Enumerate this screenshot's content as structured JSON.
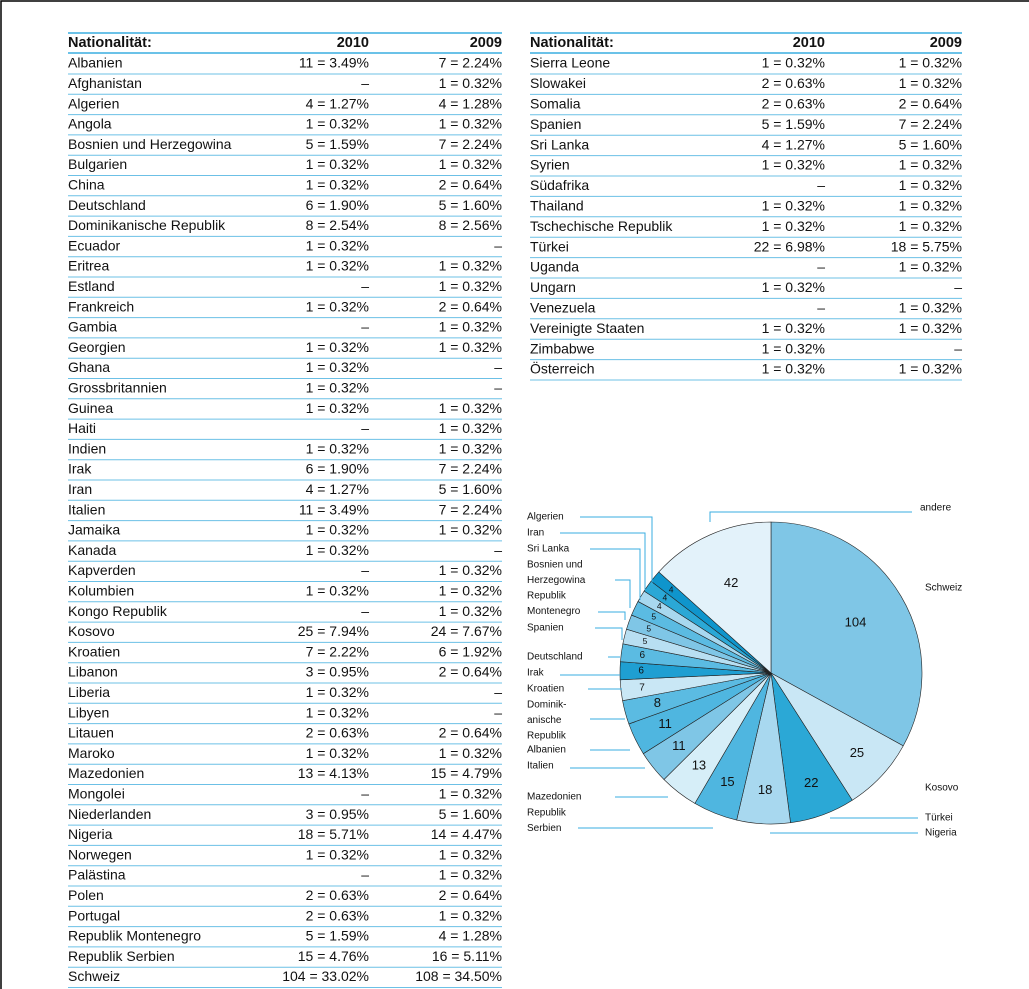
{
  "tables": [
    {
      "header": [
        "Nationalität:",
        "2010",
        "2009"
      ],
      "rows": [
        [
          "Albanien",
          "11 = 3.49%",
          "7 = 2.24%"
        ],
        [
          "Afghanistan",
          "–",
          "1 = 0.32%"
        ],
        [
          "Algerien",
          "4 = 1.27%",
          "4 = 1.28%"
        ],
        [
          "Angola",
          "1 = 0.32%",
          "1 = 0.32%"
        ],
        [
          "Bosnien und Herzegowina",
          "5 = 1.59%",
          "7 = 2.24%"
        ],
        [
          "Bulgarien",
          "1 = 0.32%",
          "1 = 0.32%"
        ],
        [
          "China",
          "1 = 0.32%",
          "2 = 0.64%"
        ],
        [
          "Deutschland",
          "6 = 1.90%",
          "5 = 1.60%"
        ],
        [
          "Dominikanische Republik",
          "8 = 2.54%",
          "8 = 2.56%"
        ],
        [
          "Ecuador",
          "1 = 0.32%",
          "–"
        ],
        [
          "Eritrea",
          "1 = 0.32%",
          "1 = 0.32%"
        ],
        [
          "Estland",
          "–",
          "1 = 0.32%"
        ],
        [
          "Frankreich",
          "1 = 0.32%",
          "2 = 0.64%"
        ],
        [
          "Gambia",
          "–",
          "1 = 0.32%"
        ],
        [
          "Georgien",
          "1 = 0.32%",
          "1 = 0.32%"
        ],
        [
          "Ghana",
          "1 = 0.32%",
          "–"
        ],
        [
          "Grossbritannien",
          "1 = 0.32%",
          "–"
        ],
        [
          "Guinea",
          "1 = 0.32%",
          "1 = 0.32%"
        ],
        [
          "Haiti",
          "–",
          "1 = 0.32%"
        ],
        [
          "Indien",
          "1 = 0.32%",
          "1 = 0.32%"
        ],
        [
          "Irak",
          "6 = 1.90%",
          "7 = 2.24%"
        ],
        [
          "Iran",
          "4 = 1.27%",
          "5 = 1.60%"
        ],
        [
          "Italien",
          "11 = 3.49%",
          "7 = 2.24%"
        ],
        [
          "Jamaika",
          "1 = 0.32%",
          "1 = 0.32%"
        ],
        [
          "Kanada",
          "1 = 0.32%",
          "–"
        ],
        [
          "Kapverden",
          "–",
          "1 = 0.32%"
        ],
        [
          "Kolumbien",
          "1 = 0.32%",
          "1 = 0.32%"
        ],
        [
          "Kongo Republik",
          "–",
          "1 = 0.32%"
        ],
        [
          "Kosovo",
          "25 = 7.94%",
          "24 = 7.67%"
        ],
        [
          "Kroatien",
          "7 = 2.22%",
          "6 = 1.92%"
        ],
        [
          "Libanon",
          "3 = 0.95%",
          "2 = 0.64%"
        ],
        [
          "Liberia",
          "1 = 0.32%",
          "–"
        ],
        [
          "Libyen",
          "1 = 0.32%",
          "–"
        ],
        [
          "Litauen",
          "2 = 0.63%",
          "2 = 0.64%"
        ],
        [
          "Maroko",
          "1 = 0.32%",
          "1 = 0.32%"
        ],
        [
          "Mazedonien",
          "13 = 4.13%",
          "15 = 4.79%"
        ],
        [
          "Mongolei",
          "–",
          "1 = 0.32%"
        ],
        [
          "Niederlanden",
          "3 = 0.95%",
          "5 = 1.60%"
        ],
        [
          "Nigeria",
          "18 = 5.71%",
          "14 = 4.47%"
        ],
        [
          "Norwegen",
          "1 = 0.32%",
          "1 = 0.32%"
        ],
        [
          "Palästina",
          "–",
          "1 = 0.32%"
        ],
        [
          "Polen",
          "2 = 0.63%",
          "2 = 0.64%"
        ],
        [
          "Portugal",
          "2 = 0.63%",
          "1 = 0.32%"
        ],
        [
          "Republik Montenegro",
          "5 = 1.59%",
          "4 = 1.28%"
        ],
        [
          "Republik Serbien",
          "15 = 4.76%",
          "16 = 5.11%"
        ],
        [
          "Schweiz",
          "104 = 33.02%",
          "108 = 34.50%"
        ]
      ]
    },
    {
      "header": [
        "Nationalität:",
        "2010",
        "2009"
      ],
      "rows": [
        [
          "Sierra Leone",
          "1 = 0.32%",
          "1 = 0.32%"
        ],
        [
          "Slowakei",
          "2 = 0.63%",
          "1 = 0.32%"
        ],
        [
          "Somalia",
          "2 = 0.63%",
          "2 = 0.64%"
        ],
        [
          "Spanien",
          "5 = 1.59%",
          "7 = 2.24%"
        ],
        [
          "Sri Lanka",
          "4 = 1.27%",
          "5 = 1.60%"
        ],
        [
          "Syrien",
          "1 = 0.32%",
          "1 = 0.32%"
        ],
        [
          "Südafrika",
          "–",
          "1 = 0.32%"
        ],
        [
          "Thailand",
          "1 = 0.32%",
          "1 = 0.32%"
        ],
        [
          "Tschechische Republik",
          "1 = 0.32%",
          "1 = 0.32%"
        ],
        [
          "Türkei",
          "22 = 6.98%",
          "18 = 5.75%"
        ],
        [
          "Uganda",
          "–",
          "1 = 0.32%"
        ],
        [
          "Ungarn",
          "1 = 0.32%",
          "–"
        ],
        [
          "Venezuela",
          "–",
          "1 = 0.32%"
        ],
        [
          "Vereinigte Staaten",
          "1 = 0.32%",
          "1 = 0.32%"
        ],
        [
          "Zimbabwe",
          "1 = 0.32%",
          "–"
        ],
        [
          "Österreich",
          "1 = 0.32%",
          "1 = 0.32%"
        ]
      ]
    }
  ],
  "chart_data": {
    "type": "pie",
    "categories": [
      [
        "Schweiz"
      ],
      [
        "Kosovo"
      ],
      [
        "Türkei"
      ],
      [
        "Nigeria"
      ],
      [
        "Republik",
        "Serbien"
      ],
      [
        "Mazedonien"
      ],
      [
        "Italien"
      ],
      [
        "Albanien"
      ],
      [
        "Dominik-",
        "anische",
        "Republik"
      ],
      [
        "Kroatien"
      ],
      [
        "Irak"
      ],
      [
        "Deutschland"
      ],
      [
        "Spanien"
      ],
      [
        "Republik",
        "Montenegro"
      ],
      [
        "Bosnien und",
        "Herzegowina"
      ],
      [
        "Sri Lanka"
      ],
      [
        "Iran"
      ],
      [
        "Algerien"
      ],
      [
        "andere"
      ]
    ],
    "values": [
      104,
      25,
      22,
      18,
      15,
      13,
      11,
      11,
      8,
      7,
      6,
      6,
      5,
      5,
      5,
      4,
      4,
      4,
      42
    ],
    "colors": [
      "#7fc6e6",
      "#c9e7f5",
      "#2ba8d6",
      "#a8d8ef",
      "#4fb6e0",
      "#d6eef8",
      "#7fc6e6",
      "#4fb6e0",
      "#5bbbe2",
      "#c9e7f5",
      "#1f9fd2",
      "#5bbbe2",
      "#b8dff2",
      "#7fc6e6",
      "#5bbbe2",
      "#a8d8ef",
      "#2ba8d6",
      "#0f95cc",
      "#e3f2fa"
    ]
  }
}
